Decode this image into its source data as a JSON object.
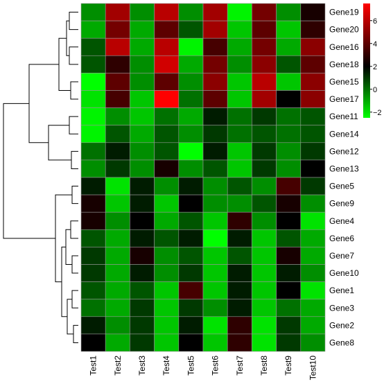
{
  "chart_data": {
    "type": "heatmap",
    "title": "",
    "xlabel": "",
    "ylabel": "",
    "columns": [
      "Test1",
      "Test2",
      "Test3",
      "Test4",
      "Test5",
      "Test6",
      "Test7",
      "Test8",
      "Test9",
      "Test10"
    ],
    "rows": [
      "Gene19",
      "Gene20",
      "Gene16",
      "Gene18",
      "Gene15",
      "Gene17",
      "Gene11",
      "Gene14",
      "Gene12",
      "Gene13",
      "Gene5",
      "Gene9",
      "Gene4",
      "Gene6",
      "Gene7",
      "Gene10",
      "Gene1",
      "Gene3",
      "Gene2",
      "Gene8"
    ],
    "values": [
      [
        -0.5,
        5.5,
        -0.5,
        6,
        -0.5,
        5.5,
        -2.3,
        4.5,
        -0.5,
        2.5
      ],
      [
        -1,
        4.5,
        -1,
        4,
        0.5,
        5.5,
        -1.5,
        4,
        -1.5,
        3
      ],
      [
        0.5,
        6,
        -1,
        6,
        -2.3,
        3.5,
        -1,
        4.5,
        -1,
        5
      ],
      [
        0.5,
        3,
        -0.5,
        6.5,
        -1,
        4.5,
        -0.5,
        5,
        0.5,
        4
      ],
      [
        -2.5,
        4,
        -0.5,
        4,
        -0.5,
        5,
        -1.5,
        6,
        -1.5,
        5
      ],
      [
        -2,
        3.5,
        -1.5,
        7.5,
        0,
        4,
        -1.5,
        5.5,
        2,
        5
      ],
      [
        -2.3,
        -0.5,
        -1.5,
        0,
        -1,
        1.5,
        0,
        1,
        0,
        0.5
      ],
      [
        -2.3,
        0.5,
        -1,
        0.5,
        -0.5,
        1,
        0,
        0.5,
        0,
        0.5
      ],
      [
        0,
        1.5,
        -0.5,
        0.5,
        -2.5,
        1.5,
        -1.5,
        1,
        -0.5,
        1
      ],
      [
        -0.5,
        1,
        -0.5,
        2.5,
        -0.5,
        0.5,
        -1.5,
        1,
        -0.5,
        2
      ],
      [
        1.5,
        -2,
        1.5,
        -0.5,
        1.5,
        -0.5,
        0.5,
        -0.5,
        3.5,
        1
      ],
      [
        2.5,
        -1.5,
        1.5,
        -1.5,
        2,
        -0.5,
        -0.5,
        0.5,
        2.5,
        -0.5
      ],
      [
        2.5,
        -0.5,
        2,
        -1,
        0.5,
        -1.5,
        3,
        -0.5,
        2,
        -2
      ],
      [
        0.5,
        -1,
        1.5,
        0.5,
        1.5,
        -2.8,
        1.5,
        -1.5,
        0.5,
        -1
      ],
      [
        1,
        -1,
        2.5,
        -0.5,
        0.5,
        -1.5,
        0.5,
        -1.5,
        2.5,
        -1
      ],
      [
        1,
        -1,
        1.5,
        -0.5,
        1,
        -1.5,
        1.5,
        -1.5,
        1.5,
        -0.5
      ],
      [
        0.5,
        -1,
        0.5,
        -1.5,
        3.5,
        -1.5,
        1.5,
        -1.5,
        2,
        -2
      ],
      [
        0,
        -1,
        1,
        -1.5,
        1,
        -0.5,
        1.5,
        -1.5,
        0,
        -1
      ],
      [
        1.5,
        -0.5,
        1,
        -1.5,
        1.5,
        -2,
        3,
        -2,
        1,
        -1
      ],
      [
        2,
        -1,
        1,
        -1.5,
        2,
        -1.5,
        3,
        -2,
        1,
        -0.5
      ]
    ],
    "color_scale": {
      "min": -2.5,
      "mid": 2,
      "max": 7.5,
      "low": "#00ff00",
      "midcolor": "#000000",
      "high": "#ff0000"
    },
    "colorbar_ticks": [
      -2,
      0,
      2,
      4,
      6
    ],
    "grid": true,
    "dendrogram": "left",
    "legend": "colorbar-right"
  }
}
